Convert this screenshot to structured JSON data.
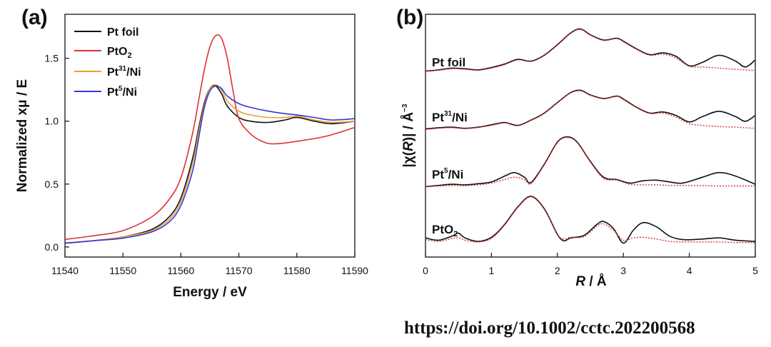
{
  "chart_data": [
    {
      "id": "a",
      "panel_label": "(a)",
      "type": "line",
      "xlabel": "Energy / eV",
      "ylabel": "Normalized xμ / E",
      "xlim": [
        11540,
        11590
      ],
      "ylim": [
        -0.08,
        1.85
      ],
      "xticks": [
        "11540",
        "11550",
        "11560",
        "11570",
        "11580",
        "11590"
      ],
      "yticks": [
        "0.0",
        "0.5",
        "1.0",
        "1.5"
      ],
      "legend_position": "top-left",
      "series": [
        {
          "name": "Pt foil",
          "color": "#111111",
          "x": [
            11540,
            11545,
            11550,
            11555,
            11558,
            11560,
            11562,
            11563,
            11564,
            11565,
            11566,
            11567,
            11568,
            11570,
            11572,
            11575,
            11578,
            11580,
            11583,
            11586,
            11590
          ],
          "y": [
            0.03,
            0.05,
            0.08,
            0.14,
            0.24,
            0.39,
            0.7,
            0.93,
            1.14,
            1.26,
            1.28,
            1.22,
            1.12,
            1.03,
            1.0,
            0.99,
            1.01,
            1.03,
            1.0,
            0.98,
            1.0
          ]
        },
        {
          "name": "PtO2",
          "color": "#e03030",
          "x": [
            11540,
            11545,
            11550,
            11555,
            11558,
            11560,
            11562,
            11563,
            11564,
            11565,
            11566,
            11567,
            11568,
            11569,
            11570,
            11572,
            11574,
            11576,
            11580,
            11585,
            11590
          ],
          "y": [
            0.06,
            0.09,
            0.13,
            0.24,
            0.38,
            0.55,
            0.9,
            1.15,
            1.4,
            1.59,
            1.68,
            1.66,
            1.5,
            1.24,
            1.02,
            0.9,
            0.84,
            0.82,
            0.84,
            0.88,
            0.95
          ]
        },
        {
          "name": "Pt31/Ni",
          "color": "#e8a030",
          "x": [
            11540,
            11545,
            11550,
            11555,
            11558,
            11560,
            11562,
            11563,
            11564,
            11565,
            11566,
            11567,
            11568,
            11570,
            11572,
            11575,
            11578,
            11580,
            11583,
            11586,
            11590
          ],
          "y": [
            0.03,
            0.05,
            0.08,
            0.13,
            0.22,
            0.36,
            0.66,
            0.9,
            1.12,
            1.26,
            1.29,
            1.25,
            1.16,
            1.08,
            1.05,
            1.03,
            1.03,
            1.04,
            1.01,
            0.99,
            1.0
          ]
        },
        {
          "name": "Pt5/Ni",
          "color": "#3535d8",
          "x": [
            11540,
            11545,
            11550,
            11555,
            11558,
            11560,
            11562,
            11563,
            11564,
            11565,
            11566,
            11567,
            11568,
            11570,
            11572,
            11575,
            11578,
            11580,
            11583,
            11586,
            11590
          ],
          "y": [
            0.03,
            0.05,
            0.07,
            0.12,
            0.2,
            0.33,
            0.6,
            0.85,
            1.1,
            1.24,
            1.28,
            1.26,
            1.2,
            1.14,
            1.11,
            1.08,
            1.06,
            1.05,
            1.03,
            1.01,
            1.02
          ]
        }
      ]
    },
    {
      "id": "b",
      "panel_label": "(b)",
      "type": "line",
      "xlabel": "R / Å",
      "ylabel": "|χ(R)| / Å⁻³",
      "xlim": [
        0,
        5
      ],
      "xticks": [
        "0",
        "1",
        "2",
        "3",
        "4",
        "5"
      ],
      "fit_style": "red dotted line",
      "samples": [
        {
          "label": "Pt foil",
          "label_sup": "",
          "label_sub": "",
          "data_color": "#111111",
          "fit_color": "#e03030",
          "r": [
            0,
            0.2,
            0.4,
            0.6,
            0.8,
            1.0,
            1.2,
            1.4,
            1.6,
            1.8,
            2.0,
            2.2,
            2.35,
            2.5,
            2.7,
            2.9,
            3.0,
            3.2,
            3.4,
            3.6,
            3.8,
            4.0,
            4.2,
            4.45,
            4.7,
            4.85,
            5.0
          ],
          "y": [
            0.3,
            0.5,
            0.8,
            0.7,
            0.5,
            0.9,
            1.5,
            2.3,
            2.0,
            3.0,
            4.8,
            6.8,
            7.5,
            6.5,
            5.6,
            5.9,
            5.4,
            4.1,
            3.1,
            3.4,
            2.8,
            1.2,
            1.8,
            3.0,
            2.0,
            1.0,
            2.2
          ],
          "fit_r": [
            0,
            0.2,
            0.4,
            0.6,
            0.8,
            1.0,
            1.2,
            1.4,
            1.6,
            1.8,
            2.0,
            2.2,
            2.35,
            2.5,
            2.7,
            2.9,
            3.0,
            3.2,
            3.4,
            3.6,
            3.8,
            4.0,
            4.2,
            4.45,
            4.7,
            4.85,
            5.0
          ],
          "fit_y": [
            0.25,
            0.45,
            0.7,
            0.6,
            0.45,
            0.8,
            1.4,
            2.2,
            1.95,
            2.95,
            4.75,
            6.75,
            7.4,
            6.45,
            5.55,
            5.85,
            5.3,
            4.0,
            3.0,
            3.2,
            2.5,
            1.1,
            1.0,
            0.8,
            0.6,
            0.5,
            0.4
          ]
        },
        {
          "label": "Pt",
          "label_sup": "31",
          "label_sub": "",
          "label_suffix": "/Ni",
          "data_color": "#111111",
          "fit_color": "#e03030",
          "r": [
            0,
            0.2,
            0.4,
            0.6,
            0.8,
            1.0,
            1.2,
            1.4,
            1.6,
            1.8,
            2.0,
            2.2,
            2.35,
            2.5,
            2.7,
            2.9,
            3.0,
            3.2,
            3.4,
            3.6,
            3.8,
            4.0,
            4.2,
            4.45,
            4.7,
            4.85,
            5.0
          ],
          "y": [
            0.3,
            0.5,
            0.6,
            0.4,
            0.6,
            1.0,
            1.4,
            0.9,
            1.8,
            3.0,
            4.8,
            6.5,
            6.9,
            6.1,
            5.5,
            5.9,
            5.4,
            4.0,
            3.0,
            3.2,
            2.6,
            1.5,
            2.4,
            3.3,
            2.4,
            1.6,
            2.6
          ],
          "fit_r": [
            0,
            0.2,
            0.4,
            0.6,
            0.8,
            1.0,
            1.2,
            1.4,
            1.6,
            1.8,
            2.0,
            2.2,
            2.35,
            2.5,
            2.7,
            2.9,
            3.0,
            3.2,
            3.4,
            3.6,
            3.8,
            4.0,
            4.2,
            4.45,
            4.7,
            4.85,
            5.0
          ],
          "fit_y": [
            0.2,
            0.4,
            0.5,
            0.35,
            0.55,
            0.9,
            1.3,
            0.85,
            1.75,
            2.95,
            4.75,
            6.45,
            6.8,
            6.05,
            5.45,
            5.85,
            5.3,
            3.95,
            2.95,
            3.0,
            2.3,
            1.2,
            0.9,
            0.7,
            0.6,
            0.5,
            0.4
          ]
        },
        {
          "label": "Pt",
          "label_sup": "5",
          "label_sub": "",
          "label_suffix": "/Ni",
          "data_color": "#111111",
          "fit_color": "#e03030",
          "r": [
            0,
            0.2,
            0.4,
            0.6,
            0.8,
            1.0,
            1.2,
            1.35,
            1.5,
            1.6,
            1.8,
            2.0,
            2.15,
            2.3,
            2.5,
            2.7,
            2.9,
            3.1,
            3.3,
            3.5,
            3.7,
            3.9,
            4.2,
            4.45,
            4.7,
            5.0
          ],
          "y": [
            0.2,
            0.4,
            0.6,
            0.5,
            0.7,
            1.0,
            2.0,
            2.6,
            1.8,
            0.9,
            4.0,
            7.8,
            8.7,
            7.8,
            4.5,
            1.8,
            1.4,
            0.8,
            1.2,
            1.3,
            1.0,
            0.8,
            1.8,
            2.6,
            2.0,
            0.6
          ],
          "fit_r": [
            0,
            0.2,
            0.4,
            0.6,
            0.8,
            1.0,
            1.2,
            1.35,
            1.5,
            1.6,
            1.8,
            2.0,
            2.15,
            2.3,
            2.5,
            2.7,
            2.9,
            3.1,
            3.3,
            3.5,
            3.7,
            3.9,
            4.2,
            4.45,
            4.7,
            5.0
          ],
          "fit_y": [
            0.2,
            0.3,
            0.4,
            0.35,
            0.5,
            0.8,
            1.4,
            1.8,
            1.4,
            0.7,
            3.9,
            7.7,
            8.6,
            7.7,
            4.4,
            1.6,
            1.3,
            0.6,
            0.5,
            0.5,
            0.4,
            0.4,
            0.35,
            0.3,
            0.3,
            0.3
          ]
        },
        {
          "label": "PtO",
          "label_sup": "",
          "label_sub": "2",
          "label_suffix": "",
          "data_color": "#111111",
          "fit_color": "#e03030",
          "r": [
            0,
            0.2,
            0.4,
            0.5,
            0.6,
            0.8,
            1.0,
            1.2,
            1.4,
            1.6,
            1.8,
            2.0,
            2.1,
            2.2,
            2.4,
            2.6,
            2.7,
            2.85,
            3.0,
            3.15,
            3.3,
            3.5,
            3.7,
            3.9,
            4.2,
            4.45,
            4.7,
            5.0
          ],
          "y": [
            1.2,
            0.8,
            1.5,
            2.0,
            1.2,
            0.6,
            1.3,
            3.5,
            6.5,
            8.3,
            6.2,
            1.8,
            0.7,
            1.2,
            1.6,
            3.5,
            4.0,
            2.8,
            0.3,
            2.5,
            3.8,
            3.1,
            1.5,
            0.9,
            1.0,
            1.2,
            0.8,
            0.6
          ],
          "fit_r": [
            0,
            0.2,
            0.4,
            0.5,
            0.6,
            0.8,
            1.0,
            1.2,
            1.4,
            1.6,
            1.8,
            2.0,
            2.1,
            2.2,
            2.4,
            2.6,
            2.7,
            2.85,
            3.0,
            3.15,
            3.3,
            3.5,
            3.7,
            3.9,
            4.2,
            4.45,
            4.7,
            5.0
          ],
          "fit_y": [
            0.9,
            0.6,
            1.1,
            1.2,
            0.8,
            0.5,
            1.1,
            3.4,
            6.4,
            8.2,
            6.1,
            1.8,
            1.0,
            1.3,
            1.4,
            3.2,
            3.6,
            2.5,
            0.8,
            1.2,
            1.3,
            1.0,
            0.6,
            0.5,
            0.5,
            0.5,
            0.4,
            0.4
          ]
        }
      ]
    }
  ],
  "source": "https://doi.org/10.1002/cctc.202200568"
}
